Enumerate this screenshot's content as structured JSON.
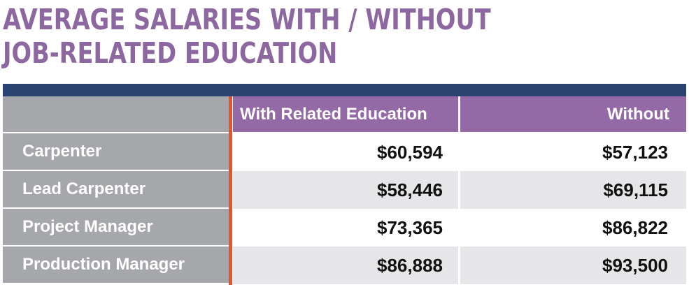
{
  "title": {
    "line1": "AVERAGE SALARIES WITH / WITHOUT",
    "line2": "JOB-RELATED EDUCATION"
  },
  "colors": {
    "title": "#8c67a0",
    "navy_bar": "#2b4370",
    "header_bg": "#946aa6",
    "header_label_bg": "#a6a7aa",
    "label_bg": "#a6a7aa",
    "row_bg_white": "#ffffff",
    "row_bg_gray": "#e6e6e8",
    "orange_rule": "#e8542a"
  },
  "chart_data": {
    "type": "table",
    "title": "AVERAGE SALARIES WITH / WITHOUT JOB-RELATED EDUCATION",
    "columns": [
      "",
      "With Related Education",
      "Without"
    ],
    "rows": [
      {
        "label": "Carpenter",
        "with": "$60,594",
        "without": "$57,123"
      },
      {
        "label": "Lead Carpenter",
        "with": "$58,446",
        "without": "$69,115"
      },
      {
        "label": "Project Manager",
        "with": "$73,365",
        "without": "$86,822"
      },
      {
        "label": "Production Manager",
        "with": "$86,888",
        "without": "$93,500"
      }
    ],
    "values": {
      "with_related_education": [
        60594,
        58446,
        73365,
        86888
      ],
      "without": [
        57123,
        69115,
        86822,
        93500
      ]
    }
  }
}
